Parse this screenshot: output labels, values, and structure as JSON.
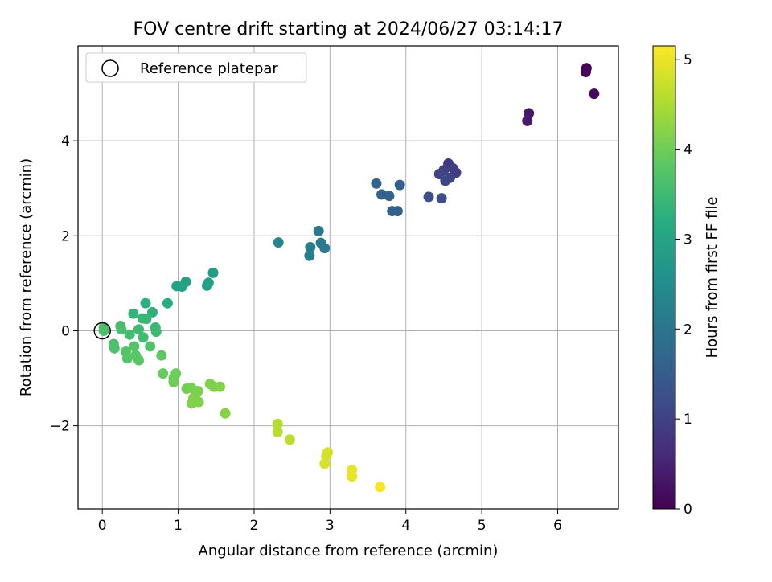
{
  "chart_data": {
    "type": "scatter",
    "title": "FOV centre drift starting at 2024/06/27 03:14:17",
    "xlabel": "Angular distance from reference (arcmin)",
    "ylabel": "Rotation from reference (arcmin)",
    "xlim": [
      -0.32,
      6.8
    ],
    "ylim": [
      -3.75,
      6.0
    ],
    "xticks": [
      0,
      1,
      2,
      3,
      4,
      5,
      6
    ],
    "yticks": [
      -2,
      0,
      2,
      4
    ],
    "grid": true,
    "legend": {
      "placement": "top-left",
      "entries": [
        "Reference platepar"
      ]
    },
    "reference_point": {
      "x": 0,
      "y": 0
    },
    "colorbar": {
      "label": "Hours from first FF file",
      "range": [
        0,
        5.15
      ],
      "ticks": [
        0,
        1,
        2,
        3,
        4,
        5
      ],
      "colormap": "viridis"
    },
    "points": [
      {
        "x": 6.38,
        "y": 5.53,
        "c": 0.02
      },
      {
        "x": 6.37,
        "y": 5.45,
        "c": 0.05
      },
      {
        "x": 6.48,
        "y": 4.99,
        "c": 0.08
      },
      {
        "x": 5.62,
        "y": 4.58,
        "c": 0.35
      },
      {
        "x": 5.6,
        "y": 4.42,
        "c": 0.38
      },
      {
        "x": 4.56,
        "y": 3.52,
        "c": 0.85
      },
      {
        "x": 4.62,
        "y": 3.42,
        "c": 0.9
      },
      {
        "x": 4.66,
        "y": 3.33,
        "c": 0.95
      },
      {
        "x": 4.5,
        "y": 3.38,
        "c": 0.98
      },
      {
        "x": 4.44,
        "y": 3.3,
        "c": 1.02
      },
      {
        "x": 4.58,
        "y": 3.22,
        "c": 1.05
      },
      {
        "x": 4.52,
        "y": 3.16,
        "c": 1.1
      },
      {
        "x": 4.3,
        "y": 2.82,
        "c": 1.25
      },
      {
        "x": 4.47,
        "y": 2.79,
        "c": 1.2
      },
      {
        "x": 3.92,
        "y": 3.07,
        "c": 1.55
      },
      {
        "x": 3.61,
        "y": 3.1,
        "c": 1.65
      },
      {
        "x": 3.68,
        "y": 2.87,
        "c": 1.6
      },
      {
        "x": 3.78,
        "y": 2.84,
        "c": 1.62
      },
      {
        "x": 3.82,
        "y": 2.52,
        "c": 1.58
      },
      {
        "x": 3.89,
        "y": 2.52,
        "c": 1.56
      },
      {
        "x": 2.85,
        "y": 2.1,
        "c": 2.05
      },
      {
        "x": 2.88,
        "y": 1.85,
        "c": 2.1
      },
      {
        "x": 2.93,
        "y": 1.74,
        "c": 2.12
      },
      {
        "x": 2.74,
        "y": 1.76,
        "c": 2.15
      },
      {
        "x": 2.73,
        "y": 1.58,
        "c": 2.18
      },
      {
        "x": 2.32,
        "y": 1.86,
        "c": 2.3
      },
      {
        "x": 1.46,
        "y": 1.22,
        "c": 2.85
      },
      {
        "x": 1.4,
        "y": 1.01,
        "c": 2.88
      },
      {
        "x": 1.38,
        "y": 0.95,
        "c": 2.9
      },
      {
        "x": 1.1,
        "y": 1.03,
        "c": 2.92
      },
      {
        "x": 1.05,
        "y": 0.93,
        "c": 2.95
      },
      {
        "x": 0.98,
        "y": 0.94,
        "c": 2.95
      },
      {
        "x": 0.86,
        "y": 0.58,
        "c": 3.15
      },
      {
        "x": 0.57,
        "y": 0.58,
        "c": 3.25
      },
      {
        "x": 0.66,
        "y": 0.39,
        "c": 3.3
      },
      {
        "x": 0.41,
        "y": 0.36,
        "c": 3.35
      },
      {
        "x": 0.53,
        "y": 0.26,
        "c": 3.4
      },
      {
        "x": 0.58,
        "y": 0.25,
        "c": 3.42
      },
      {
        "x": 0.7,
        "y": 0.07,
        "c": 3.45
      },
      {
        "x": 0.71,
        "y": -0.02,
        "c": 3.48
      },
      {
        "x": 0.48,
        "y": 0.03,
        "c": 3.5
      },
      {
        "x": 0.54,
        "y": -0.14,
        "c": 3.52
      },
      {
        "x": 0.36,
        "y": -0.08,
        "c": 3.55
      },
      {
        "x": 0.24,
        "y": 0.1,
        "c": 3.58
      },
      {
        "x": 0.25,
        "y": 0.03,
        "c": 3.6
      },
      {
        "x": 0.02,
        "y": 0.07,
        "c": 3.62
      },
      {
        "x": 0.02,
        "y": 0.0,
        "c": 3.64
      },
      {
        "x": 0.15,
        "y": -0.28,
        "c": 3.66
      },
      {
        "x": 0.16,
        "y": -0.37,
        "c": 3.68
      },
      {
        "x": 0.63,
        "y": -0.33,
        "c": 3.7
      },
      {
        "x": 0.42,
        "y": -0.33,
        "c": 3.72
      },
      {
        "x": 0.31,
        "y": -0.44,
        "c": 3.74
      },
      {
        "x": 0.33,
        "y": -0.58,
        "c": 3.76
      },
      {
        "x": 0.44,
        "y": -0.52,
        "c": 3.78
      },
      {
        "x": 0.48,
        "y": -0.62,
        "c": 3.8
      },
      {
        "x": 0.78,
        "y": -0.52,
        "c": 3.85
      },
      {
        "x": 0.8,
        "y": -0.9,
        "c": 3.92
      },
      {
        "x": 0.97,
        "y": -0.9,
        "c": 3.96
      },
      {
        "x": 0.94,
        "y": -1.0,
        "c": 3.98
      },
      {
        "x": 0.94,
        "y": -1.08,
        "c": 4.0
      },
      {
        "x": 1.11,
        "y": -1.22,
        "c": 4.03
      },
      {
        "x": 1.17,
        "y": -1.2,
        "c": 4.05
      },
      {
        "x": 1.23,
        "y": -1.33,
        "c": 4.08
      },
      {
        "x": 1.26,
        "y": -1.27,
        "c": 4.1
      },
      {
        "x": 1.2,
        "y": -1.42,
        "c": 4.12
      },
      {
        "x": 1.27,
        "y": -1.5,
        "c": 4.14
      },
      {
        "x": 1.18,
        "y": -1.53,
        "c": 4.15
      },
      {
        "x": 1.42,
        "y": -1.12,
        "c": 4.12
      },
      {
        "x": 1.47,
        "y": -1.18,
        "c": 4.14
      },
      {
        "x": 1.55,
        "y": -1.18,
        "c": 4.16
      },
      {
        "x": 1.62,
        "y": -1.74,
        "c": 4.2
      },
      {
        "x": 2.31,
        "y": -1.96,
        "c": 4.55
      },
      {
        "x": 2.31,
        "y": -2.13,
        "c": 4.58
      },
      {
        "x": 2.47,
        "y": -2.29,
        "c": 4.62
      },
      {
        "x": 2.97,
        "y": -2.56,
        "c": 4.8
      },
      {
        "x": 2.95,
        "y": -2.64,
        "c": 4.82
      },
      {
        "x": 2.93,
        "y": -2.8,
        "c": 4.85
      },
      {
        "x": 3.29,
        "y": -2.93,
        "c": 4.95
      },
      {
        "x": 3.29,
        "y": -3.07,
        "c": 4.98
      },
      {
        "x": 3.66,
        "y": -3.29,
        "c": 5.1
      }
    ]
  }
}
